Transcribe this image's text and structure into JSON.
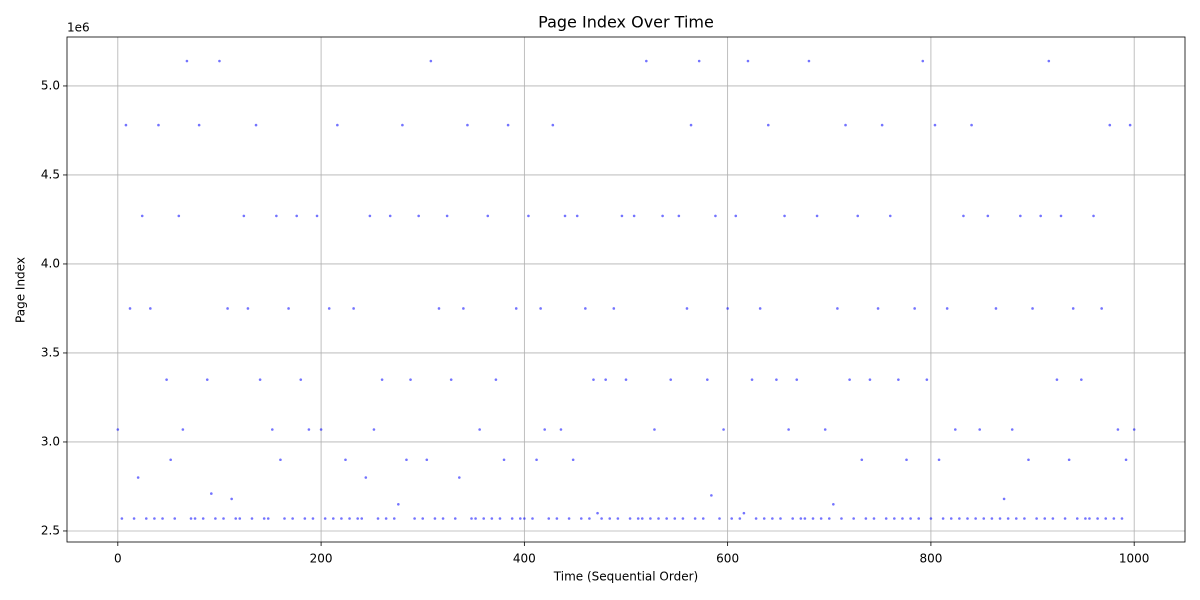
{
  "chart_data": {
    "type": "scatter",
    "title": "Page Index Over Time",
    "x_label": "Time (Sequential Order)",
    "y_label": "Page Index",
    "y_offset_label": "1e6",
    "xlim": [
      -50,
      1050
    ],
    "ylim": [
      2.438,
      5.275
    ],
    "xticks": [
      0,
      200,
      400,
      600,
      800,
      1000
    ],
    "yticks": [
      2.5,
      {
        "value": 3,
        "label": "3.0"
      },
      3.5,
      {
        "value": 4,
        "label": "4.0"
      },
      4.5,
      {
        "value": 5,
        "label": "5.0"
      }
    ],
    "grid": true,
    "series": [
      {
        "name": "Page Index",
        "color": "#0000ff",
        "x": [
          0,
          4,
          8,
          12,
          16,
          20,
          24,
          28,
          32,
          36,
          40,
          44,
          48,
          52,
          56,
          60,
          64,
          68,
          72,
          76,
          80,
          84,
          88,
          92,
          96,
          100,
          104,
          108,
          112,
          116,
          120,
          124,
          128,
          132,
          136,
          140,
          144,
          148,
          152,
          156,
          160,
          164,
          168,
          172,
          176,
          180,
          184,
          188,
          192,
          196,
          200,
          204,
          208,
          212,
          216,
          220,
          224,
          228,
          232,
          236,
          240,
          244,
          248,
          252,
          256,
          260,
          264,
          268,
          272,
          276,
          280,
          284,
          288,
          292,
          296,
          300,
          304,
          308,
          312,
          316,
          320,
          324,
          328,
          332,
          336,
          340,
          344,
          348,
          352,
          356,
          360,
          364,
          368,
          372,
          376,
          380,
          384,
          388,
          392,
          396,
          400,
          404,
          408,
          412,
          416,
          420,
          424,
          428,
          432,
          436,
          440,
          444,
          448,
          452,
          456,
          460,
          464,
          468,
          472,
          476,
          480,
          484,
          488,
          492,
          496,
          500,
          504,
          508,
          512,
          516,
          520,
          524,
          528,
          532,
          536,
          540,
          544,
          548,
          552,
          556,
          560,
          564,
          568,
          572,
          576,
          580,
          584,
          588,
          592,
          596,
          600,
          604,
          608,
          612,
          616,
          620,
          624,
          628,
          632,
          636,
          640,
          644,
          648,
          652,
          656,
          660,
          664,
          668,
          672,
          676,
          680,
          684,
          688,
          692,
          696,
          700,
          704,
          708,
          712,
          716,
          720,
          724,
          728,
          732,
          736,
          740,
          744,
          748,
          752,
          756,
          760,
          764,
          768,
          772,
          776,
          780,
          784,
          788,
          792,
          796,
          800,
          804,
          808,
          812,
          816,
          820,
          824,
          828,
          832,
          836,
          840,
          844,
          848,
          852,
          856,
          860,
          864,
          868,
          872,
          876,
          880,
          884,
          888,
          892,
          896,
          900,
          904,
          908,
          912,
          916,
          920,
          924,
          928,
          932,
          936,
          940,
          944,
          948,
          952,
          956,
          960,
          964,
          968,
          972,
          976,
          980,
          984,
          988,
          992,
          996,
          1000
        ],
        "values": [
          3.07,
          2.57,
          4.78,
          3.75,
          2.57,
          2.8,
          4.27,
          2.57,
          3.75,
          2.57,
          4.78,
          2.57,
          3.35,
          2.9,
          2.57,
          4.27,
          3.07,
          5.14,
          2.57,
          2.57,
          4.78,
          2.57,
          3.35,
          2.71,
          2.57,
          5.14,
          2.57,
          3.75,
          2.68,
          2.57,
          2.57,
          4.27,
          3.75,
          2.57,
          4.78,
          3.35,
          2.57,
          2.57,
          3.07,
          4.27,
          2.9,
          2.57,
          3.75,
          2.57,
          4.27,
          3.35,
          2.57,
          3.07,
          2.57,
          4.27,
          3.07,
          2.57,
          3.75,
          2.57,
          4.78,
          2.57,
          2.9,
          2.57,
          3.75,
          2.57,
          2.57,
          2.8,
          4.27,
          3.07,
          2.57,
          3.35,
          2.57,
          4.27,
          2.57,
          2.65,
          4.78,
          2.9,
          3.35,
          2.57,
          4.27,
          2.57,
          2.9,
          5.14,
          2.57,
          3.75,
          2.57,
          4.27,
          3.35,
          2.57,
          2.8,
          3.75,
          4.78,
          2.57,
          2.57,
          3.07,
          2.57,
          4.27,
          2.57,
          3.35,
          2.57,
          2.9,
          4.78,
          2.57,
          3.75,
          2.57,
          2.57,
          4.27,
          2.57,
          2.9,
          3.75,
          3.07,
          2.57,
          4.78,
          2.57,
          3.07,
          4.27,
          2.57,
          2.9,
          4.27,
          2.57,
          3.75,
          2.57,
          3.35,
          2.6,
          2.57,
          3.35,
          2.57,
          3.75,
          2.57,
          4.27,
          3.35,
          2.57,
          4.27,
          2.57,
          2.57,
          5.14,
          2.57,
          3.07,
          2.57,
          4.27,
          2.57,
          3.35,
          2.57,
          4.27,
          2.57,
          3.75,
          4.78,
          2.57,
          5.14,
          2.57,
          3.35,
          2.7,
          4.27,
          2.57,
          3.07,
          3.75,
          2.57,
          4.27,
          2.57,
          2.6,
          5.14,
          3.35,
          2.57,
          3.75,
          2.57,
          4.78,
          2.57,
          3.35,
          2.57,
          4.27,
          3.07,
          2.57,
          3.35,
          2.57,
          2.57,
          5.14,
          2.57,
          4.27,
          2.57,
          3.07,
          2.57,
          2.65,
          3.75,
          2.57,
          4.78,
          3.35,
          2.57,
          4.27,
          2.9,
          2.57,
          3.35,
          2.57,
          3.75,
          4.78,
          2.57,
          4.27,
          2.57,
          3.35,
          2.57,
          2.9,
          2.57,
          3.75,
          2.57,
          5.14,
          3.35,
          2.57,
          4.78,
          2.9,
          2.57,
          3.75,
          2.57,
          3.07,
          2.57,
          4.27,
          2.57,
          4.78,
          2.57,
          3.07,
          2.57,
          4.27,
          2.57,
          3.75,
          2.57,
          2.68,
          2.57,
          3.07,
          2.57,
          4.27,
          2.57,
          2.9,
          3.75,
          2.57,
          4.27,
          2.57,
          5.14,
          2.57,
          3.35,
          4.27,
          2.57,
          2.9,
          3.75,
          2.57,
          3.35,
          2.57,
          2.57,
          4.27,
          2.57,
          3.75,
          2.57,
          4.78,
          2.57,
          3.07,
          2.57,
          2.9,
          4.78,
          3.07
        ]
      }
    ]
  }
}
